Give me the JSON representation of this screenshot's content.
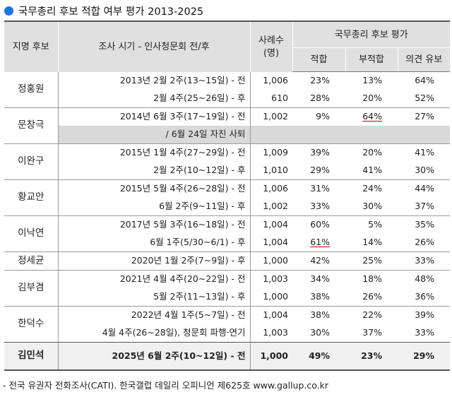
{
  "title": "국무총리 후보 적합 여부 평가 2013-2025",
  "headers": {
    "candidate": "지명 후보",
    "period": "조사 시기 - 인사청문회 전/후",
    "sample_line1": "사례수",
    "sample_line2": "(명)",
    "group": "국무총리 후보 평가",
    "fit": "적합",
    "unfit": "부적합",
    "reserved": "의견 유보"
  },
  "groups": [
    {
      "name": "정홍원",
      "rows": [
        {
          "period": "2013년 2월 2주(13~15일) - 전",
          "n": "1,006",
          "fit": "23%",
          "unfit": "13%",
          "reserved": "64%"
        },
        {
          "period": "2월 4주(25~26일) - 후",
          "n": "610",
          "fit": "28%",
          "unfit": "20%",
          "reserved": "52%"
        }
      ]
    },
    {
      "name": "문창극",
      "rows": [
        {
          "period": "2014년 6월 3주(17~19일) - 전",
          "n": "1,002",
          "fit": "9%",
          "unfit": "64%",
          "reserved": "27%"
        },
        {
          "period": "/ 6월 24일 자진 사퇴",
          "n": "",
          "fit": "",
          "unfit": "",
          "reserved": ""
        }
      ]
    },
    {
      "name": "이완구",
      "rows": [
        {
          "period": "2015년 1월 4주(27~29일) - 전",
          "n": "1,009",
          "fit": "39%",
          "unfit": "20%",
          "reserved": "41%"
        },
        {
          "period": "2월 2주(10~12일) - 후",
          "n": "1,010",
          "fit": "29%",
          "unfit": "41%",
          "reserved": "30%"
        }
      ]
    },
    {
      "name": "황교안",
      "rows": [
        {
          "period": "2015년 5월 4주(26~28일) - 전",
          "n": "1,006",
          "fit": "31%",
          "unfit": "24%",
          "reserved": "44%"
        },
        {
          "period": "6월 2주(9~11일) - 후",
          "n": "1,002",
          "fit": "33%",
          "unfit": "30%",
          "reserved": "37%"
        }
      ]
    },
    {
      "name": "이낙연",
      "rows": [
        {
          "period": "2017년 5월 3주(16~18일) - 전",
          "n": "1,004",
          "fit": "60%",
          "unfit": "5%",
          "reserved": "35%"
        },
        {
          "period": "6월 1주(5/30~6/1) - 후",
          "n": "1,004",
          "fit": "61%",
          "unfit": "14%",
          "reserved": "26%"
        }
      ]
    },
    {
      "name": "정세균",
      "rows": [
        {
          "period": "2020년 1월 2주(7~9일) - 후",
          "n": "1,000",
          "fit": "42%",
          "unfit": "25%",
          "reserved": "33%"
        }
      ]
    },
    {
      "name": "김부겸",
      "rows": [
        {
          "period": "2021년 4월 4주(20~22일) - 전",
          "n": "1,003",
          "fit": "34%",
          "unfit": "18%",
          "reserved": "48%"
        },
        {
          "period": "5월 2주(11~13일) - 후",
          "n": "1,000",
          "fit": "38%",
          "unfit": "26%",
          "reserved": "36%"
        }
      ]
    },
    {
      "name": "한덕수",
      "rows": [
        {
          "period": "2022년 4월 1주(5~7일) - 전",
          "n": "1,004",
          "fit": "38%",
          "unfit": "22%",
          "reserved": "39%"
        },
        {
          "period": "4월 4주(26~28일), 청문회 파행·연기",
          "n": "1,003",
          "fit": "30%",
          "unfit": "37%",
          "reserved": "33%"
        }
      ]
    },
    {
      "name": "김민석",
      "rows": [
        {
          "period": "2025년 6월 2주(10~12일) - 전",
          "n": "1,000",
          "fit": "49%",
          "unfit": "23%",
          "reserved": "29%"
        }
      ]
    }
  ],
  "footer": "- 전국 유권자 전화조사(CATI). 한국갤럽 데일리 오피니언 제625호 www.gallup.co.kr",
  "colors": {
    "accent_dot": "#1a73e8",
    "highlight_underline": "#c00000",
    "header_bg": "#e0e0e0"
  }
}
